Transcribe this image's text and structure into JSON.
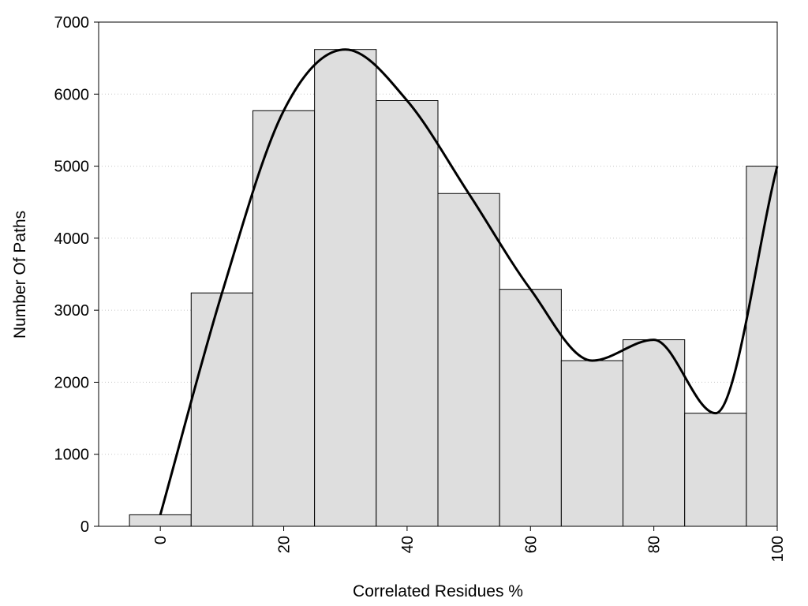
{
  "chart_data": {
    "type": "bar",
    "title": "",
    "xlabel": "Correlated Residues %",
    "ylabel": "Number Of Paths",
    "xlim": [
      -10,
      100
    ],
    "ylim": [
      0,
      7000
    ],
    "x_ticks": [
      0,
      20,
      40,
      60,
      80,
      100
    ],
    "y_ticks": [
      0,
      1000,
      2000,
      3000,
      4000,
      5000,
      6000,
      7000
    ],
    "grid": "horizontal dotted",
    "legend": "none",
    "bar_fill": "#dedede",
    "bar_stroke": "#000000",
    "curve_color": "#000000",
    "series": [
      {
        "type": "bar",
        "bins": [
          {
            "x": [
              -5,
              5
            ],
            "value": 160
          },
          {
            "x": [
              5,
              15
            ],
            "value": 3240
          },
          {
            "x": [
              15,
              25
            ],
            "value": 5770
          },
          {
            "x": [
              25,
              35
            ],
            "value": 6620
          },
          {
            "x": [
              35,
              45
            ],
            "value": 5910
          },
          {
            "x": [
              45,
              55
            ],
            "value": 4620
          },
          {
            "x": [
              55,
              65
            ],
            "value": 3290
          },
          {
            "x": [
              65,
              75
            ],
            "value": 2300
          },
          {
            "x": [
              75,
              85
            ],
            "value": 2590
          },
          {
            "x": [
              85,
              95
            ],
            "value": 1570
          },
          {
            "x": [
              95,
              100
            ],
            "value": 5000
          }
        ]
      },
      {
        "type": "line",
        "smooth": true,
        "points": [
          {
            "x": 0,
            "y": 160
          },
          {
            "x": 10,
            "y": 3240
          },
          {
            "x": 20,
            "y": 5770
          },
          {
            "x": 30,
            "y": 6620
          },
          {
            "x": 40,
            "y": 5910
          },
          {
            "x": 50,
            "y": 4620
          },
          {
            "x": 60,
            "y": 3290
          },
          {
            "x": 70,
            "y": 2300
          },
          {
            "x": 80,
            "y": 2590
          },
          {
            "x": 90,
            "y": 1570
          },
          {
            "x": 100,
            "y": 5000
          }
        ]
      }
    ]
  }
}
